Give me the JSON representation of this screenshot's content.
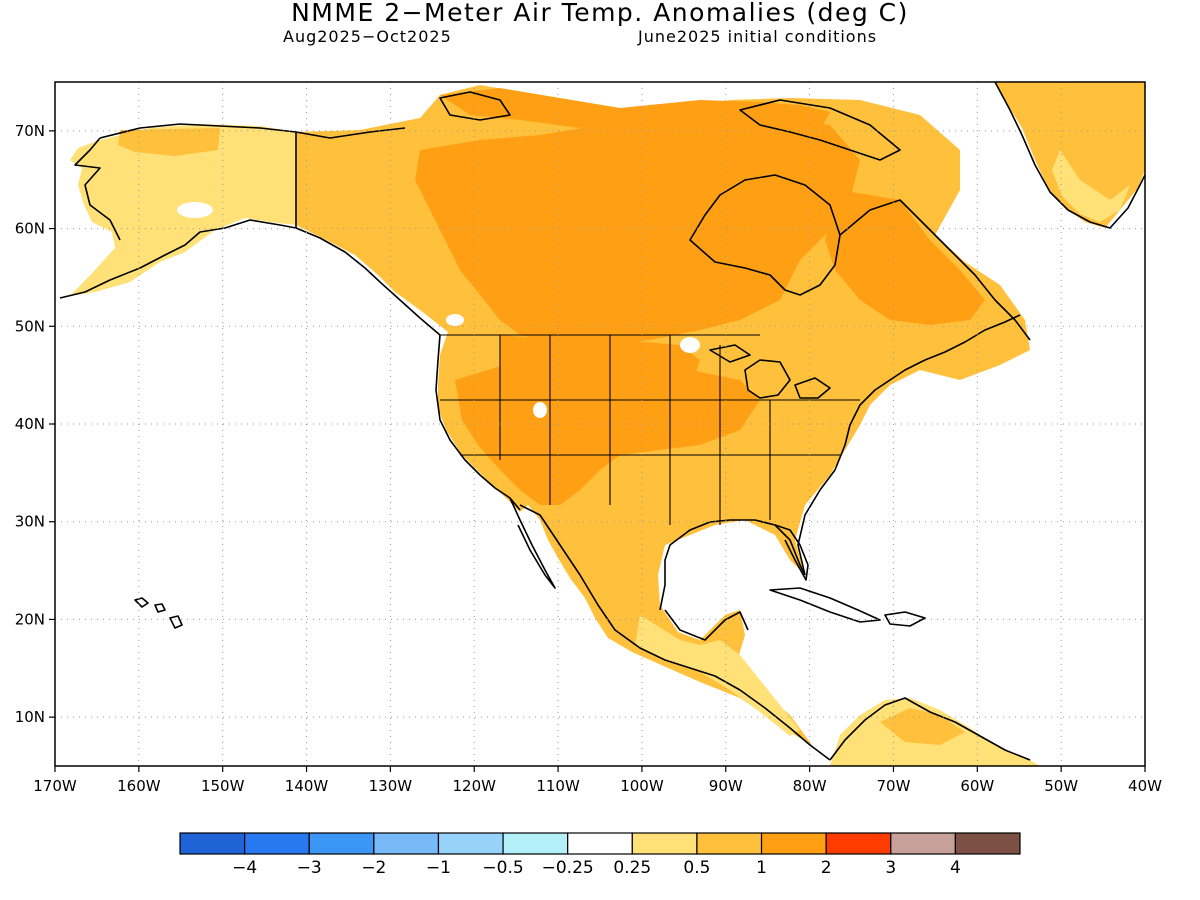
{
  "title": "NMME 2−Meter Air Temp. Anomalies (deg C)",
  "subtitle_left": "Aug2025−Oct2025",
  "subtitle_right": "June2025 initial conditions",
  "map": {
    "lon_range": [
      -170,
      -40
    ],
    "lat_range": [
      5,
      75
    ],
    "lon_ticks": [
      "170W",
      "160W",
      "150W",
      "140W",
      "130W",
      "120W",
      "110W",
      "100W",
      "90W",
      "80W",
      "70W",
      "60W",
      "50W",
      "40W"
    ],
    "lat_ticks": [
      "10N",
      "20N",
      "30N",
      "40N",
      "50N",
      "60N",
      "70N"
    ]
  },
  "colorbar": {
    "colors": [
      "#1e64d6",
      "#2878f0",
      "#3c96f5",
      "#78b9fa",
      "#96d2fa",
      "#b4f0fa",
      "#ffffff",
      "#ffe178",
      "#ffc03c",
      "#ffa014",
      "#ff3c00",
      "#c8a09a",
      "#7d5046"
    ],
    "labels": [
      "−4",
      "−3",
      "−2",
      "−1",
      "−0.5",
      "−0.25",
      "0.25",
      "0.5",
      "1",
      "2",
      "3",
      "4"
    ]
  }
}
